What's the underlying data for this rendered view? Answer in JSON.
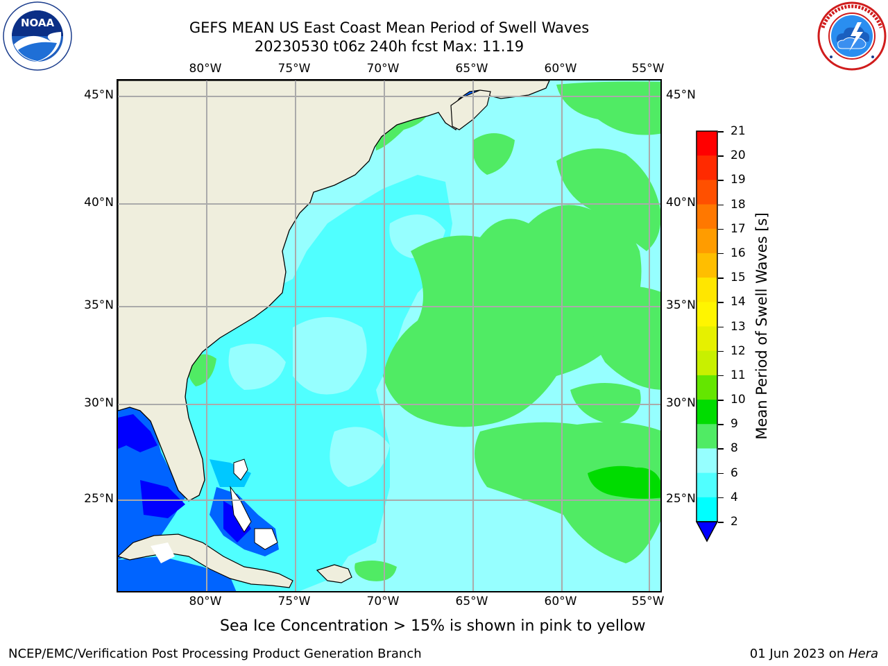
{
  "header": {
    "title_line1": "GEFS MEAN US East Coast Mean Period of Swell Waves",
    "title_line2": "20230530 t06z 240h fcst   Max: 11.19"
  },
  "logos": {
    "left": {
      "icon": "noaa-logo-icon",
      "text": "NOAA",
      "ring_text": "NATIONAL OCEANIC AND ATMOSPHERIC ADMINISTRATION · U.S. DEPARTMENT OF COMMERCE"
    },
    "right": {
      "icon": "nws-logo-icon",
      "ring_text": "NATIONAL WEATHER SERVICE"
    }
  },
  "map": {
    "longitude_labels": [
      "80°W",
      "75°W",
      "70°W",
      "65°W",
      "60°W",
      "55°W"
    ],
    "latitude_labels": [
      "45°N",
      "40°N",
      "35°N",
      "30°N",
      "25°N"
    ],
    "land_color": "#efeedd",
    "grid_color": "#aaaaaa",
    "coastline_color": "#000000"
  },
  "colorbar": {
    "label": "Mean Period of Swell Waves [s]",
    "ticks": [
      "21",
      "20",
      "19",
      "18",
      "17",
      "16",
      "15",
      "14",
      "13",
      "12",
      "11",
      "10",
      "9",
      "8",
      "6",
      "4",
      "2"
    ],
    "colors": [
      "#ff0000",
      "#ff2a00",
      "#ff5000",
      "#ff7800",
      "#ff9c00",
      "#ffbe00",
      "#ffe600",
      "#fff500",
      "#e6f000",
      "#c8f000",
      "#64e600",
      "#00dc00",
      "#50eb64",
      "#96ffff",
      "#50ffff",
      "#00ffff",
      "#00c8ff",
      "#0064ff",
      "#0000ff"
    ]
  },
  "footer": {
    "sea_ice_note": "Sea Ice Concentration > 15% is shown in pink to yellow",
    "credit": "NCEP/EMC/Verification Post Processing Product Generation Branch",
    "date": "01 Jun 2023 on ",
    "host": "Hera"
  }
}
